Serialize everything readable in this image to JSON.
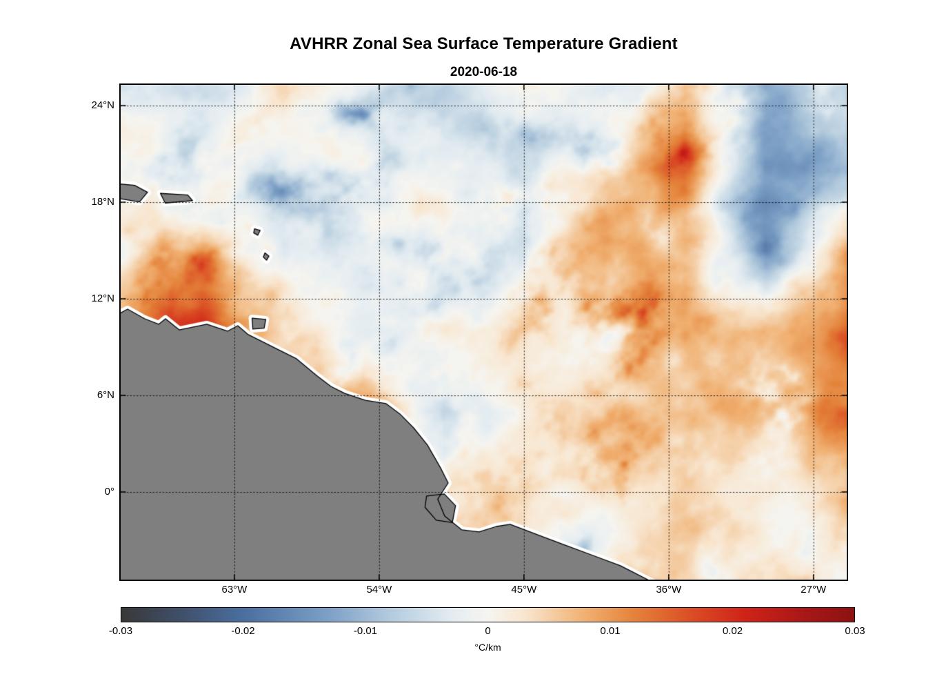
{
  "figure": {
    "title": "AVHRR Zonal Sea Surface Temperature Gradient",
    "subtitle": "2020-06-18"
  },
  "chart_data": {
    "type": "heatmap",
    "title": "AVHRR Zonal Sea Surface Temperature Gradient",
    "subtitle": "2020-06-18",
    "projection": "equirectangular",
    "lon_range": [
      -70.07,
      -24.93
    ],
    "lat_range": [
      -5.44,
      25.29
    ],
    "grid_on": true,
    "x_ticks": [
      {
        "lon": -63,
        "label": "63°W"
      },
      {
        "lon": -54,
        "label": "54°W"
      },
      {
        "lon": -45,
        "label": "45°W"
      },
      {
        "lon": -36,
        "label": "36°W"
      },
      {
        "lon": -27,
        "label": "27°W"
      }
    ],
    "y_ticks": [
      {
        "lat": 24,
        "label": "24°N"
      },
      {
        "lat": 18,
        "label": "18°N"
      },
      {
        "lat": 12,
        "label": "12°N"
      },
      {
        "lat": 6,
        "label": "6°N"
      },
      {
        "lat": 0,
        "label": "0°"
      }
    ],
    "colorbar": {
      "orientation": "horizontal",
      "min": -0.03,
      "max": 0.03,
      "ticks": [
        -0.03,
        -0.02,
        -0.01,
        0,
        0.01,
        0.02,
        0.03
      ],
      "tick_labels": [
        "-0.03",
        "-0.02",
        "-0.01",
        "0",
        "0.01",
        "0.02",
        "0.03"
      ],
      "label": "°C/km",
      "stops": [
        {
          "v": -0.03,
          "c": "#383838"
        },
        {
          "v": -0.025,
          "c": "#40506b"
        },
        {
          "v": -0.02,
          "c": "#4a6fa0"
        },
        {
          "v": -0.013,
          "c": "#7da0c6"
        },
        {
          "v": -0.008,
          "c": "#b3cbde"
        },
        {
          "v": -0.003,
          "c": "#e3ecf1"
        },
        {
          "v": 0.0,
          "c": "#f6f5f0"
        },
        {
          "v": 0.003,
          "c": "#f8e6cf"
        },
        {
          "v": 0.008,
          "c": "#f0b071"
        },
        {
          "v": 0.012,
          "c": "#e4823a"
        },
        {
          "v": 0.017,
          "c": "#da4a24"
        },
        {
          "v": 0.021,
          "c": "#cf2318"
        },
        {
          "v": 0.026,
          "c": "#a81717"
        },
        {
          "v": 0.03,
          "c": "#8c1211"
        }
      ]
    },
    "field_grid": {
      "comment": "coarse estimate of zonal SST gradient (degC/km) read from the figure",
      "lons": [
        -70,
        -65,
        -60,
        -55,
        -50,
        -45,
        -40,
        -35,
        -30,
        -25
      ],
      "lats": [
        25,
        20,
        15,
        10,
        5,
        0,
        -5
      ],
      "values": [
        [
          -0.002,
          -0.006,
          0.002,
          -0.002,
          -0.008,
          0.002,
          -0.004,
          0.004,
          -0.014,
          -0.006
        ],
        [
          0.002,
          0.002,
          -0.002,
          0.002,
          -0.002,
          -0.006,
          0.006,
          0.01,
          -0.016,
          -0.01
        ],
        [
          0.002,
          0.004,
          -0.004,
          -0.002,
          0.002,
          -0.006,
          0.01,
          0.008,
          -0.012,
          0.01
        ],
        [
          0.006,
          0.022,
          0.004,
          -0.002,
          0.002,
          0.002,
          -0.004,
          0.008,
          0.006,
          0.012
        ],
        [
          0.002,
          0.002,
          0.004,
          0.014,
          -0.008,
          0.002,
          0.004,
          0.006,
          0.01,
          0.012
        ],
        [
          0.0,
          0.0,
          0.002,
          0.002,
          0.004,
          0.002,
          -0.002,
          0.006,
          -0.002,
          0.006
        ],
        [
          0.0,
          0.0,
          0.0,
          0.002,
          0.002,
          0.004,
          0.002,
          0.004,
          0.004,
          0.0
        ]
      ]
    },
    "noise": {
      "seed": 11,
      "octaves": [
        [
          120,
          1
        ],
        [
          60,
          0.6
        ],
        [
          30,
          0.4
        ],
        [
          14,
          0.22
        ],
        [
          7,
          0.1
        ]
      ],
      "base_amp": 0.008,
      "cubic_amp": 0.02
    },
    "land": {
      "color": "#7f7f7f",
      "outline": "#000000",
      "halo": "#ffffff",
      "mainland": [
        [
          -70.2,
          11.05
        ],
        [
          -69.64,
          11.36
        ],
        [
          -68.57,
          10.76
        ],
        [
          -67.71,
          10.42
        ],
        [
          -67.28,
          10.76
        ],
        [
          -66.43,
          10.07
        ],
        [
          -64.71,
          10.42
        ],
        [
          -63.43,
          9.99
        ],
        [
          -62.79,
          10.33
        ],
        [
          -62.14,
          9.78
        ],
        [
          -60.43,
          8.92
        ],
        [
          -59.14,
          8.28
        ],
        [
          -57.86,
          7.21
        ],
        [
          -57.0,
          6.56
        ],
        [
          -56.14,
          6.13
        ],
        [
          -54.86,
          5.7
        ],
        [
          -53.57,
          5.49
        ],
        [
          -52.71,
          4.85
        ],
        [
          -51.86,
          3.99
        ],
        [
          -51.0,
          2.92
        ],
        [
          -50.14,
          1.42
        ],
        [
          -49.71,
          0.56
        ],
        [
          -50.36,
          -0.44
        ],
        [
          -49.93,
          -1.49
        ],
        [
          -48.86,
          -2.35
        ],
        [
          -47.79,
          -2.48
        ],
        [
          -46.71,
          -2.14
        ],
        [
          -45.86,
          -2.01
        ],
        [
          -44.14,
          -2.66
        ],
        [
          -42.43,
          -3.3
        ],
        [
          -40.71,
          -3.94
        ],
        [
          -39.0,
          -4.58
        ],
        [
          -37.0,
          -5.6
        ]
      ],
      "islands": [
        [
          [
            -70.3,
            19.15
          ],
          [
            -69.2,
            19.05
          ],
          [
            -68.4,
            18.62
          ],
          [
            -68.9,
            18.02
          ],
          [
            -70.3,
            18.25
          ]
        ],
        [
          [
            -67.6,
            18.55
          ],
          [
            -65.9,
            18.45
          ],
          [
            -65.6,
            18.1
          ],
          [
            -67.3,
            17.95
          ]
        ],
        [
          [
            -61.75,
            16.35
          ],
          [
            -61.4,
            16.25
          ],
          [
            -61.55,
            15.95
          ],
          [
            -61.8,
            16.1
          ]
        ],
        [
          [
            -61.1,
            14.85
          ],
          [
            -60.85,
            14.65
          ],
          [
            -61.0,
            14.4
          ],
          [
            -61.2,
            14.6
          ]
        ],
        [
          [
            -61.9,
            10.8
          ],
          [
            -61.05,
            10.72
          ],
          [
            -61.15,
            10.18
          ],
          [
            -61.85,
            10.12
          ]
        ],
        [
          [
            -51.05,
            -0.25
          ],
          [
            -49.95,
            -0.12
          ],
          [
            -49.25,
            -0.85
          ],
          [
            -49.45,
            -1.9
          ],
          [
            -50.45,
            -1.75
          ],
          [
            -51.15,
            -0.95
          ]
        ]
      ]
    }
  }
}
